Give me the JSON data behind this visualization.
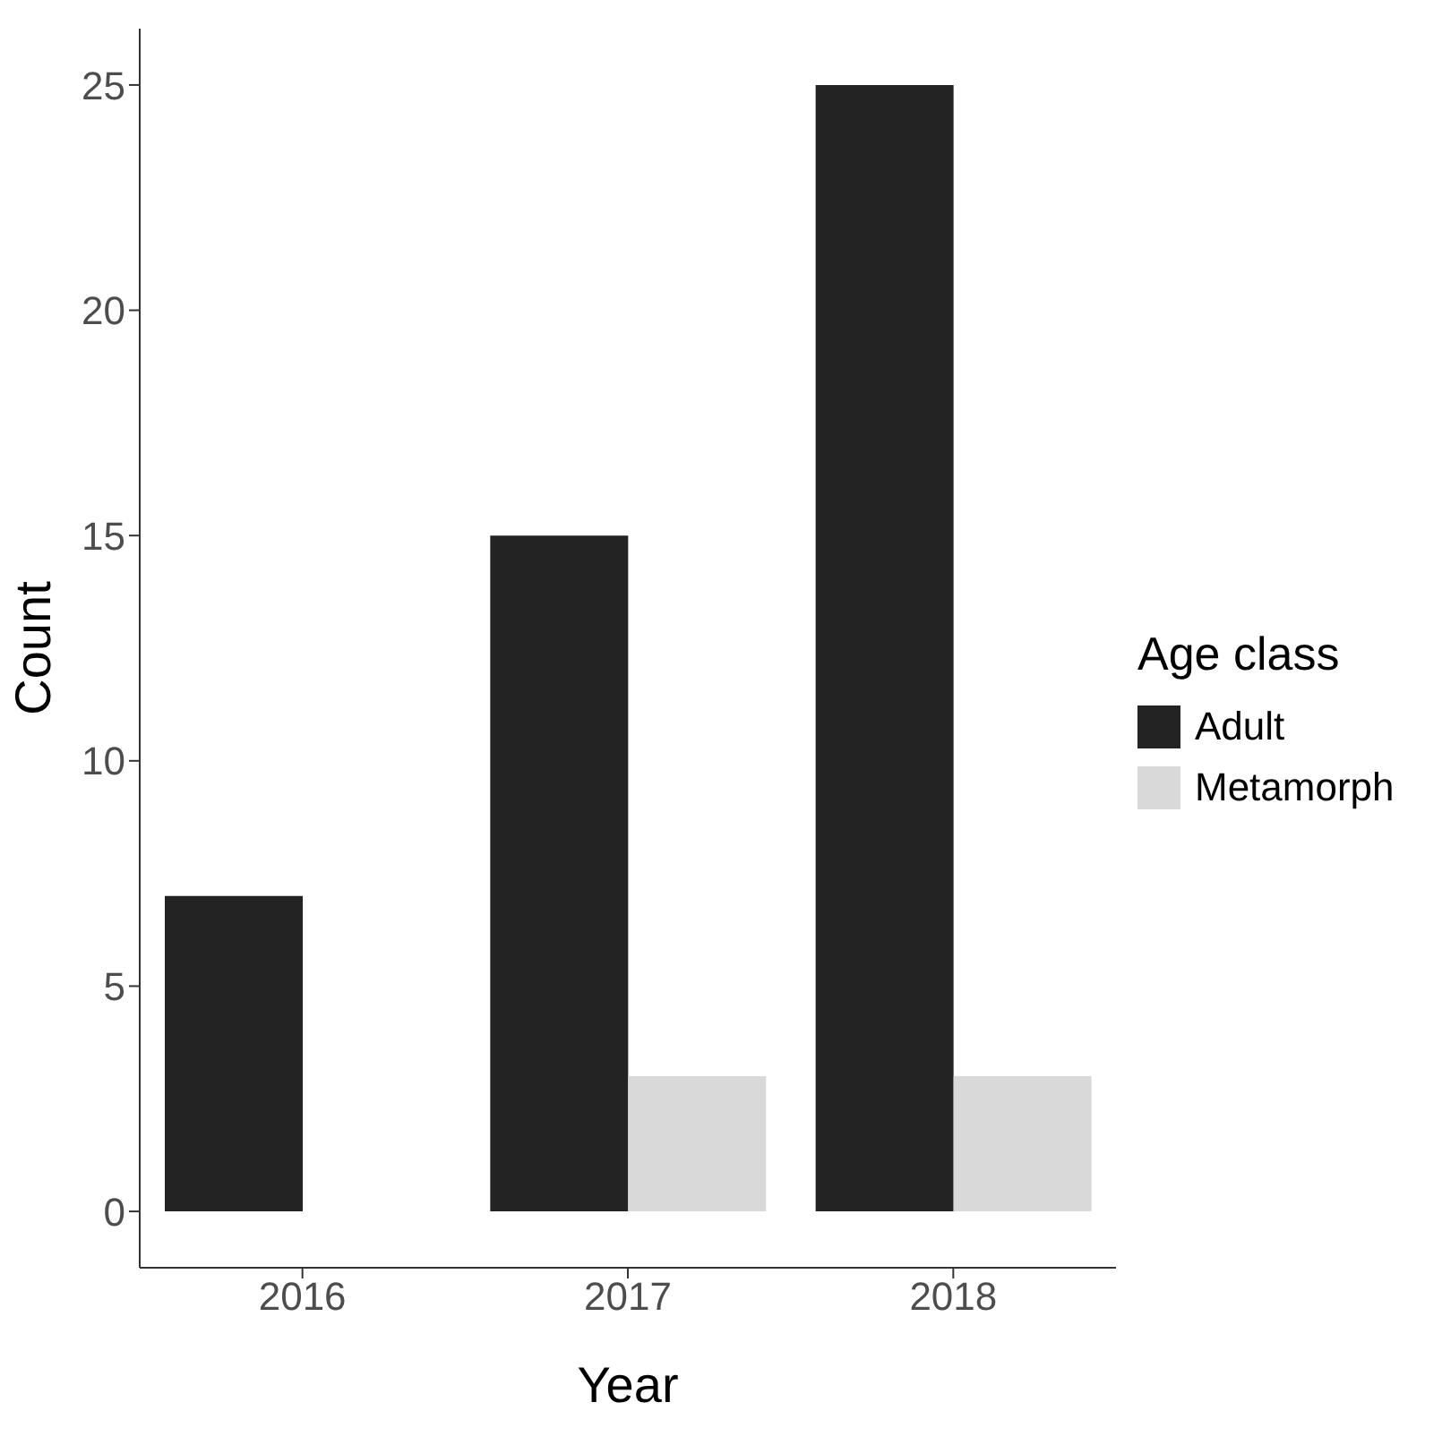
{
  "chart_data": {
    "type": "bar",
    "xlabel": "Year",
    "ylabel": "Count",
    "legend_title": "Age class",
    "categories": [
      "2016",
      "2017",
      "2018"
    ],
    "series": [
      {
        "name": "Adult",
        "color": "#232323",
        "values": [
          7,
          15,
          25
        ]
      },
      {
        "name": "Metamorph",
        "color": "#d9d9d9",
        "values": [
          null,
          3,
          3
        ]
      }
    ],
    "ylim": [
      -1.25,
      26.25
    ],
    "yticks": [
      0,
      5,
      10,
      15,
      20,
      25
    ],
    "grid": false,
    "legend": "right"
  }
}
